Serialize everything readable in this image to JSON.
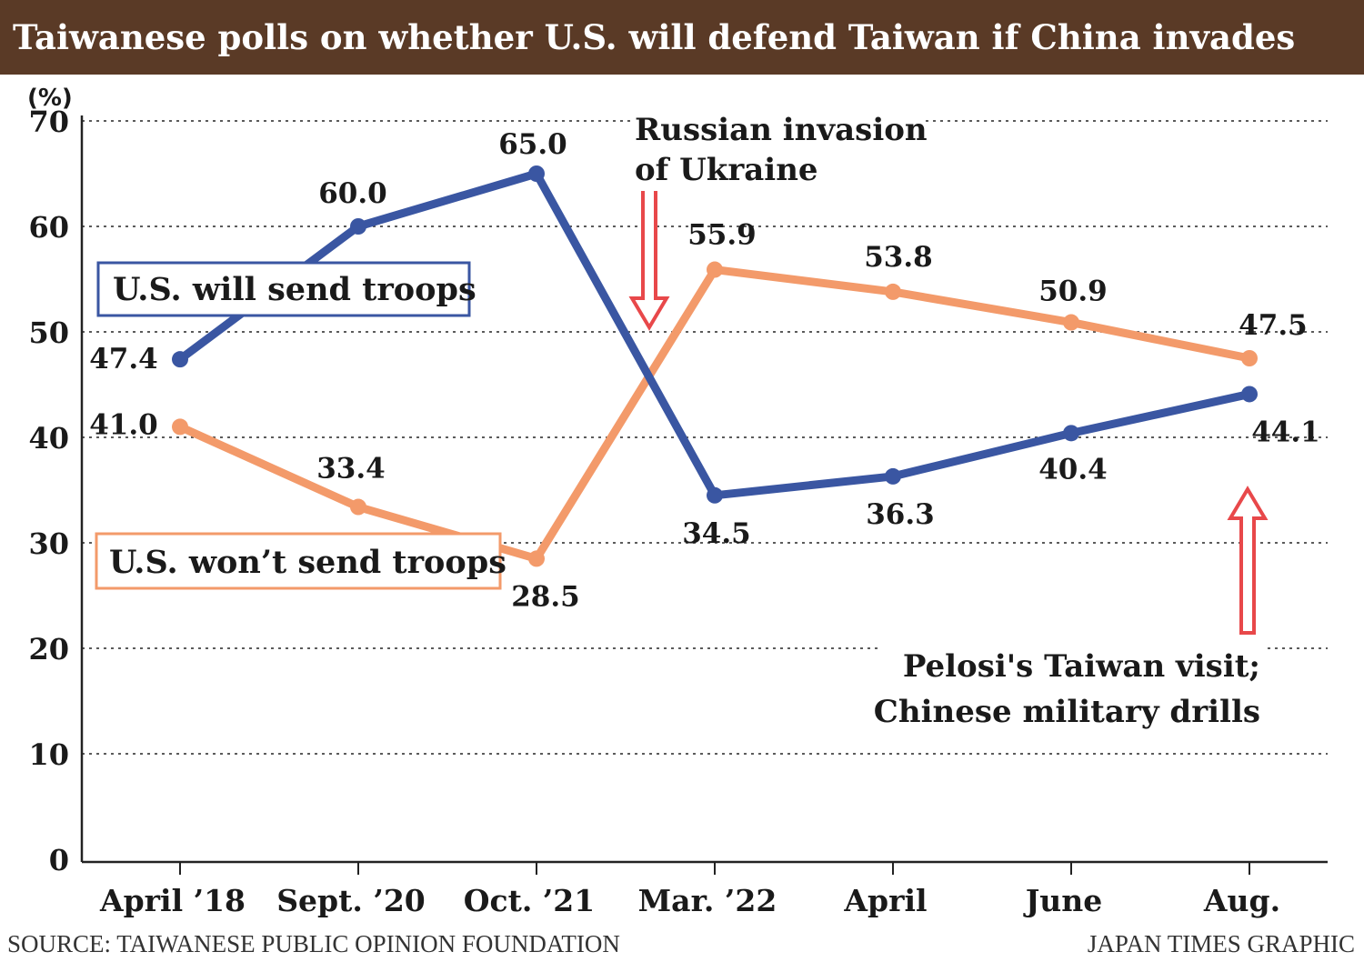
{
  "title": "Taiwanese polls on whether U.S. will defend Taiwan if China invades",
  "source": "SOURCE: TAIWANESE PUBLIC OPINION FOUNDATION",
  "credit": "JAPAN TIMES GRAPHIC",
  "chart_data": {
    "type": "line",
    "title": "Taiwanese polls on whether U.S. will defend Taiwan if China invades",
    "ylabel": "(%)",
    "xlabel": "",
    "ylim": [
      0,
      70
    ],
    "yticks": [
      0,
      10,
      20,
      30,
      40,
      50,
      60,
      70
    ],
    "grid": true,
    "categories": [
      "April ’18",
      "Sept. ’20",
      "Oct. ’21",
      "Mar. ’22",
      "April",
      "June",
      "Aug."
    ],
    "series": [
      {
        "name": "U.S. will send troops",
        "color": "#3a56a2",
        "values": [
          47.4,
          60.0,
          65.0,
          34.5,
          36.3,
          40.4,
          44.1
        ],
        "labels": [
          "47.4",
          "60.0",
          "65.0",
          "34.5",
          "36.3",
          "40.4",
          "44.1"
        ]
      },
      {
        "name": "U.S. won’t send troops",
        "color": "#f39a6a",
        "values": [
          41.0,
          33.4,
          28.5,
          55.9,
          53.8,
          50.9,
          47.5
        ],
        "labels": [
          "41.0",
          "33.4",
          "28.5",
          "55.9",
          "53.8",
          "50.9",
          "47.5"
        ]
      }
    ],
    "annotations": [
      {
        "id": "russia",
        "lines": [
          "Russian invasion",
          "of Ukraine"
        ],
        "arrow": "down",
        "arrow_color": "#e8484a"
      },
      {
        "id": "pelosi",
        "lines": [
          "Pelosi's Taiwan visit;",
          "Chinese military drills"
        ],
        "arrow": "up",
        "arrow_color": "#e8484a"
      }
    ]
  }
}
